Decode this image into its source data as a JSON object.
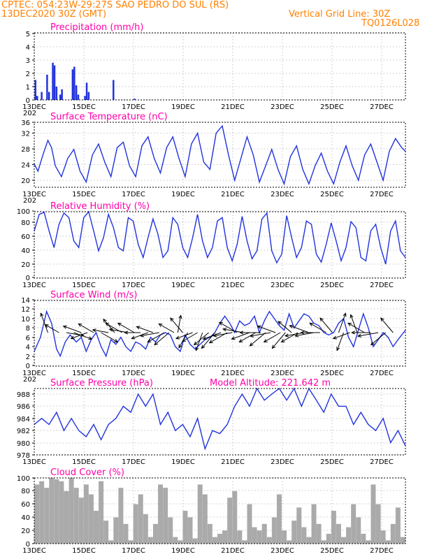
{
  "header": {
    "line1": "CPTEC:  054:23W-29:27S  SAO PEDRO DO SUL (RS)",
    "line2_left": "13DEC2020 30Z (GMT)",
    "line2_right": "Vertical Grid Line: 30Z",
    "line3_right": "TQ0126L028",
    "color": "#ff8000"
  },
  "colors": {
    "title": "#ff00aa",
    "series": "#2233dd",
    "cloud": "#aaaaaa",
    "arrow": "#000000"
  },
  "x_tick_labels": [
    "13DEC",
    "15DEC",
    "17DEC",
    "19DEC",
    "21DEC",
    "23DEC",
    "25DEC",
    "27DEC"
  ],
  "panels": [
    {
      "title": "Precipitation (mm/h)",
      "yticks": [
        "0",
        "1",
        "2",
        "3",
        "4",
        "5"
      ],
      "extra_label": "202"
    },
    {
      "title": "Surface Temperature (nC)",
      "yticks": [
        "20",
        "24",
        "28",
        "32",
        "36"
      ],
      "extra_label": "202"
    },
    {
      "title": "Relative Humidity (%)",
      "yticks": [
        "0",
        "20",
        "40",
        "60",
        "80",
        "100"
      ],
      "extra_label": ""
    },
    {
      "title": "Surface Wind (m/s)",
      "yticks": [
        "0",
        "2",
        "4",
        "6",
        "8",
        "10",
        "12",
        "14"
      ],
      "extra_label": "202"
    },
    {
      "title": "Surface Pressure (hPa)",
      "subtitle": "Model Altitude: 221.642 m",
      "yticks": [
        "978",
        "980",
        "982",
        "984",
        "986",
        "988"
      ],
      "extra_label": ""
    },
    {
      "title": "Cloud Cover (%)",
      "yticks": [
        "0",
        "20",
        "40",
        "60",
        "80",
        "100"
      ],
      "extra_label": ""
    }
  ],
  "chart_data": [
    {
      "type": "bar",
      "title": "Precipitation (mm/h)",
      "xunit": "day offset from 13DEC 06Z",
      "ylim": [
        0,
        5
      ],
      "x": [
        0.05,
        0.12,
        0.3,
        0.75,
        0.82,
        0.9,
        1.05,
        1.12,
        1.55,
        1.62,
        1.7,
        1.78,
        2.05,
        2.12,
        2.2,
        3.2,
        4.05,
        0.52,
        0.6
      ],
      "values": [
        1.5,
        0.3,
        0.6,
        2.8,
        2.6,
        1.0,
        0.4,
        0.8,
        2.3,
        2.5,
        1.1,
        0.4,
        0.3,
        1.3,
        0.6,
        1.5,
        0.1,
        1.9,
        0.6
      ]
    },
    {
      "type": "line",
      "title": "Surface Temperature (nC)",
      "ylim": [
        18,
        36
      ],
      "x": [
        0,
        0.15,
        0.35,
        0.55,
        0.7,
        0.85,
        1.1,
        1.35,
        1.6,
        1.85,
        2.1,
        2.35,
        2.6,
        2.85,
        3.1,
        3.35,
        3.6,
        3.85,
        4.1,
        4.35,
        4.6,
        4.85,
        5.1,
        5.35,
        5.6,
        5.85,
        6.1,
        6.35,
        6.6,
        6.85,
        7.1,
        7.35,
        7.6,
        7.85,
        8.1,
        8.35,
        8.6,
        8.85,
        9.1,
        9.35,
        9.6,
        9.85,
        10.1,
        10.35,
        10.6,
        10.85,
        11.1,
        11.35,
        11.6,
        11.85,
        12.1,
        12.35,
        12.6,
        12.85,
        13.1,
        13.35,
        13.6,
        13.85,
        14.1,
        14.35,
        14.6,
        14.85,
        15.0
      ],
      "values": [
        24.5,
        22.5,
        27,
        31,
        29,
        24,
        21,
        26,
        28.5,
        22.5,
        19.5,
        27,
        30,
        25,
        21,
        29,
        30.5,
        24,
        21,
        29.5,
        32,
        26,
        22,
        29,
        32,
        26,
        21,
        30,
        33,
        25,
        23,
        33,
        35,
        27,
        20,
        26,
        32,
        27,
        19.5,
        24,
        28.5,
        23,
        19,
        26.5,
        29.5,
        23,
        19,
        24,
        27.5,
        22.5,
        19,
        25,
        29.5,
        24,
        20,
        27,
        30,
        25,
        20,
        28,
        31.5,
        29,
        28
      ]
    },
    {
      "type": "line",
      "title": "Relative Humidity (%)",
      "ylim": [
        0,
        100
      ],
      "x": [
        0,
        0.2,
        0.4,
        0.6,
        0.8,
        1.0,
        1.2,
        1.4,
        1.6,
        1.8,
        2.0,
        2.2,
        2.4,
        2.6,
        2.8,
        3.0,
        3.2,
        3.4,
        3.6,
        3.8,
        4.0,
        4.2,
        4.4,
        4.6,
        4.8,
        5.0,
        5.2,
        5.4,
        5.6,
        5.8,
        6.0,
        6.2,
        6.4,
        6.6,
        6.8,
        7.0,
        7.2,
        7.4,
        7.6,
        7.8,
        8.0,
        8.2,
        8.4,
        8.6,
        8.8,
        9.0,
        9.2,
        9.4,
        9.6,
        9.8,
        10.0,
        10.2,
        10.4,
        10.6,
        10.8,
        11.0,
        11.2,
        11.4,
        11.6,
        11.8,
        12.0,
        12.2,
        12.4,
        12.6,
        12.8,
        13.0,
        13.2,
        13.4,
        13.6,
        13.8,
        14.0,
        14.2,
        14.4,
        14.6,
        14.8,
        15.0
      ],
      "values": [
        70,
        95,
        98,
        70,
        45,
        80,
        97,
        90,
        55,
        45,
        90,
        100,
        70,
        40,
        60,
        95,
        75,
        45,
        40,
        90,
        85,
        50,
        30,
        60,
        88,
        65,
        30,
        40,
        90,
        80,
        45,
        30,
        60,
        95,
        55,
        30,
        45,
        85,
        90,
        45,
        25,
        50,
        92,
        55,
        28,
        40,
        88,
        97,
        40,
        22,
        35,
        93,
        60,
        30,
        45,
        85,
        80,
        35,
        23,
        50,
        82,
        55,
        25,
        45,
        84,
        75,
        30,
        25,
        70,
        80,
        45,
        20,
        70,
        85,
        40,
        30
      ]
    },
    {
      "type": "line",
      "title": "Surface Wind (m/s)",
      "ylim": [
        0,
        14
      ],
      "x": [
        0,
        0.25,
        0.5,
        0.7,
        0.9,
        1.05,
        1.25,
        1.45,
        1.7,
        1.9,
        2.1,
        2.3,
        2.5,
        2.7,
        2.9,
        3.1,
        3.3,
        3.5,
        3.7,
        3.9,
        4.1,
        4.3,
        4.5,
        4.7,
        4.9,
        5.1,
        5.3,
        5.5,
        5.7,
        5.9,
        6.1,
        6.3,
        6.5,
        6.7,
        6.9,
        7.1,
        7.3,
        7.5,
        7.7,
        7.9,
        8.1,
        8.3,
        8.5,
        8.7,
        8.9,
        9.1,
        9.3,
        9.5,
        9.7,
        9.9,
        10.1,
        10.3,
        10.5,
        10.7,
        10.9,
        11.1,
        11.3,
        11.5,
        11.7,
        11.9,
        12.1,
        12.3,
        12.5,
        12.7,
        12.9,
        13.1,
        13.3,
        13.5,
        13.7,
        13.9,
        14.1,
        14.3,
        14.5,
        14.7,
        15.0
      ],
      "values": [
        3,
        6,
        11.5,
        9,
        3.5,
        2,
        5,
        6.5,
        5,
        6,
        3,
        5.5,
        7,
        4,
        2,
        5.5,
        4.5,
        6,
        4,
        3,
        5,
        4.5,
        3.5,
        6,
        5,
        6.5,
        7,
        6.5,
        4,
        3,
        6.5,
        4.5,
        3.5,
        4.5,
        5.5,
        6,
        7,
        9,
        10.5,
        9,
        7,
        9.5,
        8.5,
        9,
        10.5,
        7,
        9.5,
        11.5,
        10,
        8.5,
        7.5,
        11,
        8,
        9.5,
        11,
        10.5,
        9,
        8.5,
        7,
        6.5,
        7,
        9,
        10,
        6,
        4,
        7.5,
        11,
        8,
        4,
        5.5,
        7,
        6,
        4,
        5.5,
        7.5
      ]
    },
    {
      "type": "line",
      "title": "Surface Pressure (hPa)",
      "ylim": [
        978,
        989
      ],
      "x": [
        0,
        0.3,
        0.6,
        0.9,
        1.2,
        1.5,
        1.8,
        2.1,
        2.4,
        2.7,
        3.0,
        3.3,
        3.6,
        3.9,
        4.2,
        4.5,
        4.8,
        5.1,
        5.4,
        5.7,
        6.0,
        6.3,
        6.6,
        6.9,
        7.2,
        7.5,
        7.8,
        8.1,
        8.4,
        8.7,
        9.0,
        9.3,
        9.6,
        9.9,
        10.2,
        10.5,
        10.8,
        11.1,
        11.4,
        11.7,
        12.0,
        12.3,
        12.6,
        12.9,
        13.2,
        13.5,
        13.8,
        14.1,
        14.4,
        14.7,
        15.0
      ],
      "values": [
        983,
        984,
        983,
        985,
        982,
        984,
        982,
        981,
        983,
        980.5,
        983,
        984,
        986,
        985,
        988,
        986,
        988,
        983,
        985,
        982,
        983,
        981,
        984,
        979,
        982,
        981.5,
        983,
        986,
        988,
        986,
        989,
        987,
        988,
        989,
        987,
        989,
        986,
        989,
        987,
        985,
        988,
        986,
        986,
        983,
        985,
        983,
        982,
        984,
        980,
        982,
        979.5
      ]
    },
    {
      "type": "bar",
      "title": "Cloud Cover (%)",
      "ylim": [
        0,
        100
      ],
      "x": [
        0.1,
        0.3,
        0.5,
        0.7,
        0.9,
        1.1,
        1.3,
        1.5,
        1.7,
        1.9,
        2.1,
        2.3,
        2.5,
        2.7,
        2.9,
        3.1,
        3.3,
        3.5,
        3.7,
        3.9,
        4.1,
        4.3,
        4.5,
        4.7,
        4.9,
        5.1,
        5.3,
        5.5,
        5.7,
        5.9,
        6.1,
        6.3,
        6.5,
        6.7,
        6.9,
        7.1,
        7.3,
        7.5,
        7.7,
        7.9,
        8.1,
        8.3,
        8.5,
        8.7,
        8.9,
        9.1,
        9.3,
        9.5,
        9.7,
        9.9,
        10.1,
        10.3,
        10.5,
        10.7,
        10.9,
        11.1,
        11.3,
        11.5,
        11.7,
        11.9,
        12.1,
        12.3,
        12.5,
        12.7,
        12.9,
        13.1,
        13.3,
        13.5,
        13.7,
        13.9,
        14.1,
        14.3,
        14.5,
        14.7,
        14.9
      ],
      "values": [
        90,
        95,
        85,
        100,
        98,
        95,
        80,
        100,
        85,
        70,
        90,
        75,
        50,
        95,
        35,
        5,
        40,
        85,
        30,
        5,
        60,
        75,
        45,
        10,
        30,
        90,
        85,
        40,
        10,
        5,
        50,
        40,
        8,
        90,
        75,
        30,
        10,
        15,
        20,
        70,
        80,
        20,
        5,
        60,
        25,
        20,
        30,
        10,
        40,
        75,
        20,
        5,
        35,
        55,
        25,
        10,
        60,
        30,
        5,
        15,
        50,
        30,
        10,
        25,
        60,
        40,
        15,
        5,
        90,
        60,
        20,
        5,
        30,
        55,
        10
      ]
    }
  ],
  "wind_arrows": {
    "note": "",
    "x": [
      0.55,
      1.0,
      1.3,
      1.6,
      1.9,
      2.15,
      2.4,
      2.7,
      3.0,
      3.25,
      3.55,
      3.8,
      4.05,
      4.3,
      4.6,
      4.8,
      5.05,
      5.25,
      5.45,
      5.65,
      5.8,
      6.0,
      6.2,
      6.4,
      6.6,
      6.8,
      7.05,
      7.3,
      7.55,
      7.8,
      8.0,
      8.2,
      8.45,
      8.7,
      8.95,
      9.15,
      9.35,
      9.55,
      9.75,
      9.95,
      10.15,
      10.4,
      10.65,
      10.9,
      11.1,
      11.3,
      11.55,
      11.8,
      12.05,
      12.3,
      12.5,
      12.75,
      13.05,
      13.35,
      13.6,
      13.9,
      14.2,
      14.5
    ],
    "speed": [
      7,
      4,
      5,
      6,
      6,
      5,
      5,
      6,
      4,
      5,
      6,
      6,
      6,
      4,
      5,
      5,
      6,
      6,
      6,
      5,
      5,
      6,
      5,
      5,
      5,
      6,
      6,
      7,
      6,
      7,
      6,
      7,
      7,
      6,
      6,
      7,
      7,
      7,
      6,
      6,
      7,
      5,
      6,
      6,
      7,
      6,
      6,
      6,
      6,
      7,
      6,
      5,
      6,
      6,
      6,
      7,
      6,
      6
    ],
    "dir_deg": [
      340,
      300,
      100,
      110,
      290,
      250,
      300,
      120,
      280,
      320,
      300,
      280,
      300,
      270,
      250,
      290,
      260,
      240,
      230,
      300,
      10,
      320,
      210,
      250,
      240,
      200,
      230,
      220,
      250,
      240,
      260,
      300,
      280,
      250,
      240,
      270,
      230,
      260,
      290,
      240,
      220,
      310,
      240,
      260,
      290,
      260,
      270,
      300,
      320,
      20,
      200,
      250,
      340,
      300,
      270,
      260,
      230,
      320
    ]
  }
}
